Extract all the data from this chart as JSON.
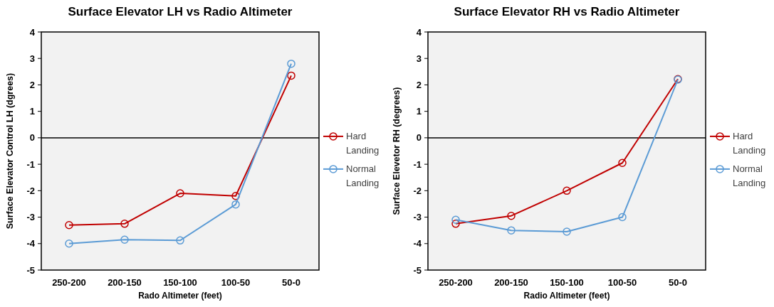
{
  "chart_data": [
    {
      "type": "line",
      "title": "Surface Elevator LH vs Radio Altimeter",
      "xlabel": "Rado Altimeter (feet)",
      "ylabel": "Surface Elevator Control LH (dgrees)",
      "categories": [
        "250-200",
        "200-150",
        "150-100",
        "100-50",
        "50-0"
      ],
      "series": [
        {
          "name": "Hard Landing",
          "color": "#c00000",
          "values": [
            -3.3,
            -3.25,
            -2.1,
            -2.2,
            2.35
          ]
        },
        {
          "name": "Normal Landing",
          "color": "#5b9bd5",
          "values": [
            -4.0,
            -3.85,
            -3.88,
            -2.52,
            2.8
          ]
        }
      ],
      "ylim": [
        -5,
        4
      ],
      "yticks": [
        -5,
        -4,
        -3,
        -2,
        -1,
        0,
        1,
        2,
        3,
        4
      ],
      "ref_lines": [
        {
          "axis": "y",
          "value": 0,
          "color": "#000000"
        }
      ],
      "grid": false,
      "legend": "right",
      "marker": "circle",
      "line_style": "solid"
    },
    {
      "type": "line",
      "title": "Surface Elevator RH vs Radio Altimeter",
      "xlabel": "Radio Altimeter (feet)",
      "ylabel": "Surface Elevetor RH (degrees)",
      "categories": [
        "250-200",
        "200-150",
        "150-100",
        "100-50",
        "50-0"
      ],
      "series": [
        {
          "name": "Hard Landing",
          "color": "#c00000",
          "values": [
            -3.25,
            -2.95,
            -2.0,
            -0.95,
            2.22
          ]
        },
        {
          "name": "Normal Landing",
          "color": "#5b9bd5",
          "values": [
            -3.1,
            -3.5,
            -3.55,
            -3.0,
            2.2
          ]
        }
      ],
      "ylim": [
        -5,
        4
      ],
      "yticks": [
        -5,
        -4,
        -3,
        -2,
        -1,
        0,
        1,
        2,
        3,
        4
      ],
      "ref_lines": [
        {
          "axis": "y",
          "value": 0,
          "color": "#000000"
        }
      ],
      "grid": false,
      "legend": "right",
      "marker": "circle",
      "line_style": "solid"
    }
  ]
}
